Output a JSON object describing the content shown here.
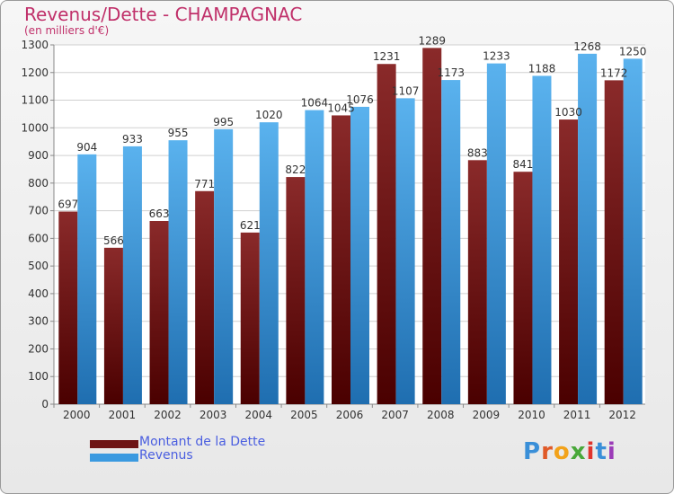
{
  "title": "Revenus/Dette - CHAMPAGNAC",
  "subtitle": "(en milliers d'€)",
  "colors": {
    "dette": "#6e1414",
    "revenus": "#3b9ae0",
    "title": "#c0306a"
  },
  "legend": {
    "dette_label": "Montant de la Dette",
    "revenus_label": "Revenus"
  },
  "logo": {
    "text": "Proxiti",
    "letters": [
      "P",
      "r",
      "o",
      "x",
      "i",
      "t",
      "i"
    ]
  },
  "chart_data": {
    "type": "bar",
    "title": "Revenus/Dette - CHAMPAGNAC",
    "subtitle": "(en milliers d'€)",
    "categories": [
      "2000",
      "2001",
      "2002",
      "2003",
      "2004",
      "2005",
      "2006",
      "2007",
      "2008",
      "2009",
      "2010",
      "2011",
      "2012"
    ],
    "series": [
      {
        "name": "Montant de la Dette",
        "values": [
          697,
          566,
          663,
          771,
          621,
          822,
          1045,
          1231,
          1289,
          883,
          841,
          1030,
          1172
        ]
      },
      {
        "name": "Revenus",
        "values": [
          904,
          933,
          955,
          995,
          1020,
          1064,
          1076,
          1107,
          1173,
          1233,
          1188,
          1268,
          1250
        ]
      }
    ],
    "ylim": [
      0,
      1300
    ],
    "yticks": [
      0,
      100,
      200,
      300,
      400,
      500,
      600,
      700,
      800,
      900,
      1000,
      1100,
      1200,
      1300
    ],
    "grid": true,
    "legend_position": "bottom-left"
  }
}
